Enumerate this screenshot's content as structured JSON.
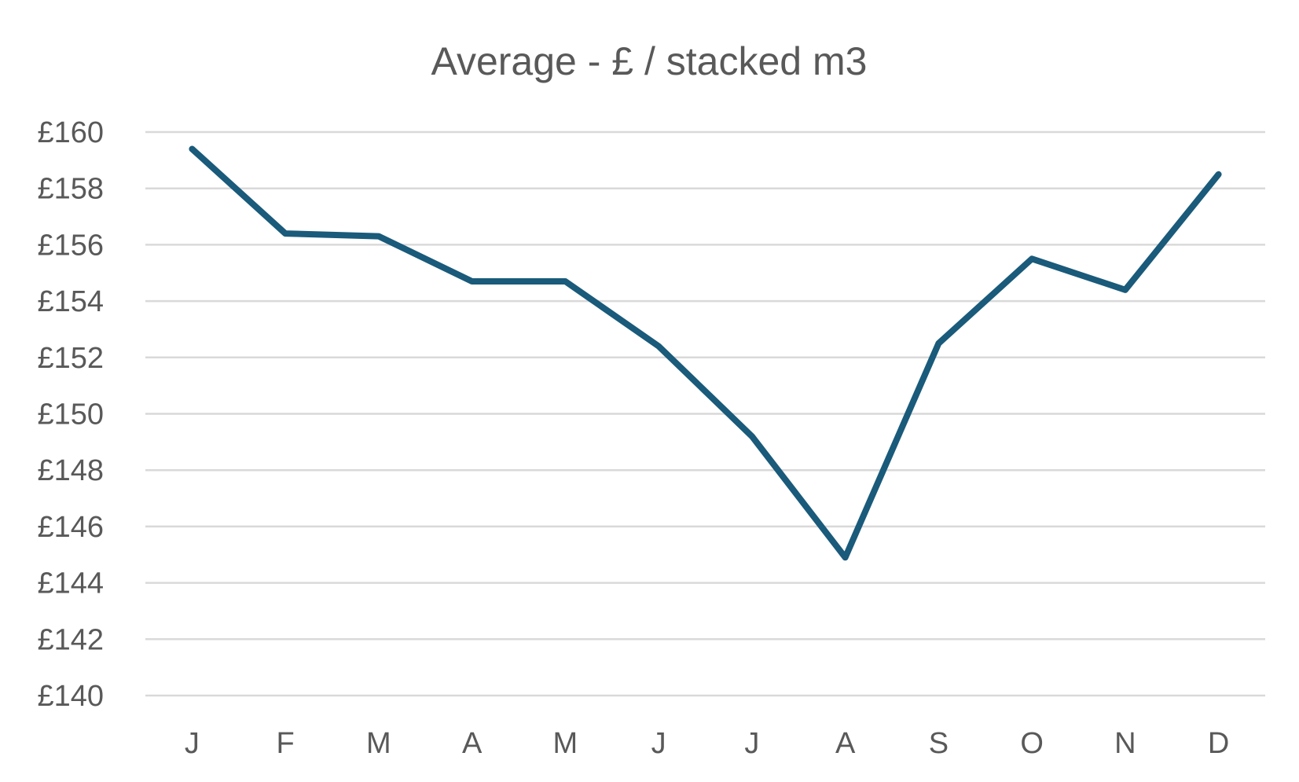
{
  "chart_data": {
    "type": "line",
    "title": "Average - £ / stacked m3",
    "xlabel": "",
    "ylabel": "",
    "categories": [
      "J",
      "F",
      "M",
      "A",
      "M",
      "J",
      "J",
      "A",
      "S",
      "O",
      "N",
      "D"
    ],
    "series": [
      {
        "values": [
          159.4,
          156.4,
          156.3,
          154.7,
          154.7,
          152.4,
          149.2,
          144.9,
          152.5,
          155.5,
          154.4,
          158.5
        ],
        "color": "#1a5a7a"
      }
    ],
    "ylim": [
      140,
      160
    ],
    "y_ticks": [
      160,
      158,
      156,
      154,
      152,
      150,
      148,
      146,
      144,
      142,
      140
    ],
    "y_tick_prefix": "£",
    "grid": true,
    "legend": "none"
  }
}
